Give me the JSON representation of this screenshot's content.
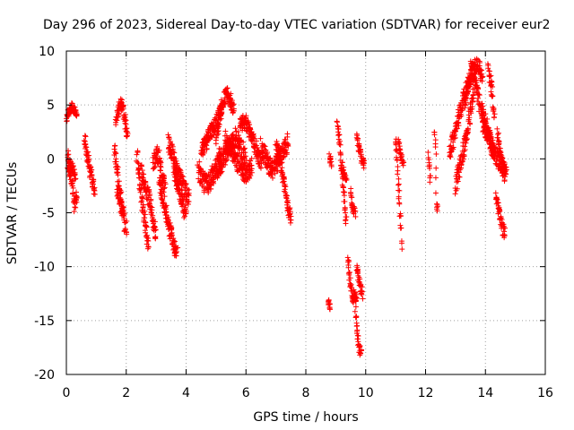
{
  "chart_data": {
    "type": "scatter",
    "title": "Day 296 of 2023, Sidereal Day-to-day VTEC variation (SDTVAR) for receiver eur2",
    "xlabel": "GPS time / hours",
    "ylabel": "SDTVAR / TECUs",
    "xlim": [
      0,
      16
    ],
    "ylim": [
      -20,
      10
    ],
    "xticks": [
      0,
      2,
      4,
      6,
      8,
      10,
      12,
      14,
      16
    ],
    "yticks": [
      -20,
      -15,
      -10,
      -5,
      0,
      5,
      10
    ],
    "grid": true,
    "marker": "+",
    "color": "#ff0000",
    "tracks": [
      {
        "t0": 0.0,
        "t1": 0.35,
        "v": [
          3.8,
          4.5,
          4.8,
          4.6,
          4.2
        ],
        "spread": 0.4
      },
      {
        "t0": 0.05,
        "t1": 0.35,
        "v": [
          -0.5,
          -1.2,
          -2.5,
          -4.5,
          -3.5
        ],
        "spread": 0.6
      },
      {
        "t0": 0.05,
        "t1": 0.3,
        "v": [
          0.5,
          -0.5,
          -1.0,
          -1.5
        ],
        "spread": 0.5
      },
      {
        "t0": 0.6,
        "t1": 0.95,
        "v": [
          1.8,
          0.5,
          -0.8,
          -2.0,
          -2.8
        ],
        "spread": 0.7
      },
      {
        "t0": 1.65,
        "t1": 2.05,
        "v": [
          3.5,
          4.5,
          5.0,
          4.8,
          3.5,
          2.0
        ],
        "spread": 0.6
      },
      {
        "t0": 1.6,
        "t1": 2.0,
        "v": [
          1.0,
          -1.0,
          -3.5,
          -5.5,
          -6.5
        ],
        "spread": 0.8
      },
      {
        "t0": 1.7,
        "t1": 1.9,
        "v": [
          -3.0,
          -4.0,
          -5.0
        ],
        "spread": 0.6
      },
      {
        "t0": 2.35,
        "t1": 2.75,
        "v": [
          0.5,
          -2.0,
          -4.5,
          -6.5,
          -8.2
        ],
        "spread": 0.8
      },
      {
        "t0": 2.5,
        "t1": 3.0,
        "v": [
          -1.0,
          -2.5,
          -3.5,
          -5.0,
          -7.0
        ],
        "spread": 0.8
      },
      {
        "t0": 2.9,
        "t1": 3.3,
        "v": [
          -0.5,
          0.5,
          0.0,
          -1.5,
          -2.5
        ],
        "spread": 0.8
      },
      {
        "t0": 3.1,
        "t1": 3.7,
        "v": [
          -2.0,
          -3.5,
          -5.0,
          -6.5,
          -8.0,
          -8.5
        ],
        "spread": 0.8
      },
      {
        "t0": 3.4,
        "t1": 4.1,
        "v": [
          1.5,
          0.5,
          -1.0,
          -2.0,
          -3.0,
          -3.5
        ],
        "spread": 0.9
      },
      {
        "t0": 3.6,
        "t1": 4.0,
        "v": [
          -1.0,
          -2.5,
          -4.0,
          -5.5
        ],
        "spread": 0.7
      },
      {
        "t0": 4.4,
        "t1": 5.2,
        "v": [
          -1.0,
          -2.0,
          -2.3,
          -1.5,
          -0.5,
          0.5
        ],
        "spread": 1.0
      },
      {
        "t0": 4.5,
        "t1": 5.2,
        "v": [
          0.5,
          1.5,
          2.5,
          3.5,
          4.5
        ],
        "spread": 0.8
      },
      {
        "t0": 5.0,
        "t1": 5.6,
        "v": [
          2.0,
          4.0,
          5.5,
          6.0,
          5.5,
          4.5
        ],
        "spread": 0.7
      },
      {
        "t0": 5.0,
        "t1": 6.0,
        "v": [
          -1.5,
          -0.5,
          0.5,
          1.5,
          2.0,
          1.0,
          0.0
        ],
        "spread": 0.9
      },
      {
        "t0": 5.3,
        "t1": 6.2,
        "v": [
          2.0,
          1.0,
          0.0,
          -1.0,
          -1.5,
          -0.5
        ],
        "spread": 0.8
      },
      {
        "t0": 5.8,
        "t1": 6.5,
        "v": [
          3.0,
          3.5,
          2.5,
          1.0,
          -0.5
        ],
        "spread": 0.7
      },
      {
        "t0": 6.5,
        "t1": 7.4,
        "v": [
          1.0,
          0.0,
          -1.0,
          -0.5,
          0.5,
          1.5
        ],
        "spread": 0.9
      },
      {
        "t0": 7.0,
        "t1": 7.5,
        "v": [
          1.5,
          0.0,
          -2.0,
          -4.0,
          -5.5
        ],
        "spread": 0.6
      },
      {
        "t0": 8.75,
        "t1": 8.8,
        "v": [
          -13.3,
          -13.8
        ],
        "spread": 0.3
      },
      {
        "t0": 8.8,
        "t1": 8.85,
        "v": [
          0.3,
          -0.5
        ],
        "spread": 0.3
      },
      {
        "t0": 9.05,
        "t1": 9.35,
        "v": [
          3.5,
          1.5,
          -1.0,
          -3.5,
          -6.0
        ],
        "spread": 0.5
      },
      {
        "t0": 9.2,
        "t1": 9.35,
        "v": [
          -0.5,
          -1.5,
          -2.0
        ],
        "spread": 0.4
      },
      {
        "t0": 9.4,
        "t1": 9.7,
        "v": [
          -9.0,
          -11.0,
          -13.0,
          -12.5,
          -13.5
        ],
        "spread": 0.6
      },
      {
        "t0": 9.5,
        "t1": 9.65,
        "v": [
          -3.0,
          -4.5,
          -5.0
        ],
        "spread": 0.4
      },
      {
        "t0": 9.65,
        "t1": 9.85,
        "v": [
          -14.0,
          -16.0,
          -17.5,
          -18.0
        ],
        "spread": 0.5
      },
      {
        "t0": 9.7,
        "t1": 9.9,
        "v": [
          -10.0,
          -11.5,
          -12.5
        ],
        "spread": 0.5
      },
      {
        "t0": 9.7,
        "t1": 9.95,
        "v": [
          2.0,
          1.0,
          0.0,
          -0.5
        ],
        "spread": 0.4
      },
      {
        "t0": 11.0,
        "t1": 11.2,
        "v": [
          2.0,
          0.0,
          -2.5,
          -5.0,
          -8.0
        ],
        "spread": 0.5
      },
      {
        "t0": 11.1,
        "t1": 11.25,
        "v": [
          1.5,
          0.5,
          -0.5
        ],
        "spread": 0.4
      },
      {
        "t0": 12.1,
        "t1": 12.15,
        "v": [
          0.5,
          -2.0
        ],
        "spread": 0.3
      },
      {
        "t0": 12.3,
        "t1": 12.4,
        "v": [
          2.5,
          1.5,
          -4.2,
          -4.6
        ],
        "spread": 0.4
      },
      {
        "t0": 12.8,
        "t1": 13.5,
        "v": [
          0.5,
          2.0,
          3.5,
          5.0,
          6.5,
          7.5
        ],
        "spread": 0.8
      },
      {
        "t0": 13.0,
        "t1": 13.6,
        "v": [
          -2.5,
          -1.0,
          0.5,
          2.0,
          4.0,
          6.0
        ],
        "spread": 0.8
      },
      {
        "t0": 13.3,
        "t1": 13.9,
        "v": [
          5.0,
          7.0,
          8.5,
          8.7,
          7.5
        ],
        "spread": 0.7
      },
      {
        "t0": 13.5,
        "t1": 14.3,
        "v": [
          8.5,
          7.0,
          5.0,
          3.5,
          2.0,
          0.5
        ],
        "spread": 0.9
      },
      {
        "t0": 13.9,
        "t1": 14.7,
        "v": [
          3.5,
          2.0,
          0.5,
          -0.5,
          -1.5
        ],
        "spread": 0.8
      },
      {
        "t0": 14.1,
        "t1": 14.3,
        "v": [
          8.5,
          6.5,
          4.0
        ],
        "spread": 0.6
      },
      {
        "t0": 14.35,
        "t1": 14.65,
        "v": [
          -3.5,
          -4.5,
          -5.5,
          -6.5,
          -7.0
        ],
        "spread": 0.6
      },
      {
        "t0": 14.4,
        "t1": 14.65,
        "v": [
          2.5,
          1.0,
          -0.5,
          -1.0
        ],
        "spread": 0.5
      }
    ]
  }
}
